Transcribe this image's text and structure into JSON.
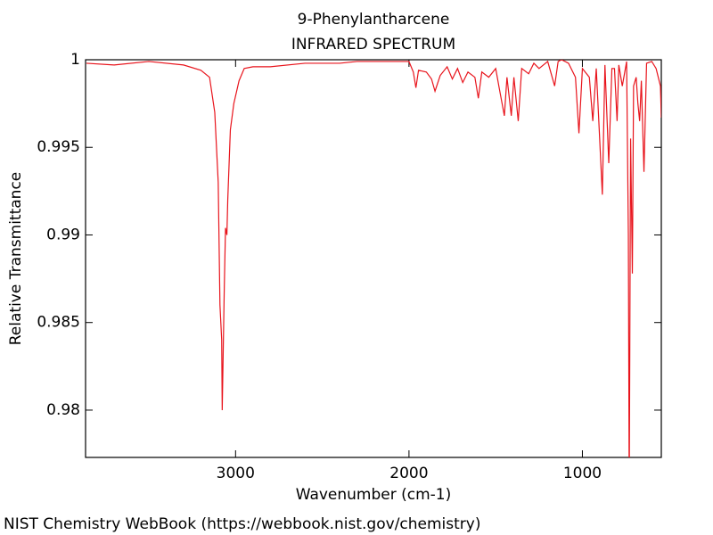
{
  "chart_data": {
    "type": "line",
    "title": "9-Phenylantharcene",
    "subtitle": "INFRARED SPECTRUM",
    "x_label": "Wavenumber (cm-1)",
    "y_label": "Relative Transmittance",
    "source": "NIST Chemistry WebBook (https://webbook.nist.gov/chemistry)",
    "xlim": [
      3865,
      545
    ],
    "ylim": [
      0.9773,
      1.0
    ],
    "xticks": [
      3000,
      2000,
      1000
    ],
    "yticks": [
      0.98,
      0.985,
      0.99,
      0.995,
      1
    ],
    "x": [
      3860,
      3700,
      3500,
      3300,
      3200,
      3150,
      3120,
      3100,
      3090,
      3080,
      3077,
      3065,
      3058,
      3050,
      3045,
      3030,
      3010,
      2980,
      2950,
      2900,
      2800,
      2600,
      2400,
      2300,
      2100,
      2000,
      1975,
      1960,
      1945,
      1900,
      1870,
      1850,
      1820,
      1780,
      1750,
      1720,
      1690,
      1660,
      1620,
      1600,
      1580,
      1540,
      1500,
      1480,
      1450,
      1435,
      1410,
      1395,
      1370,
      1350,
      1310,
      1280,
      1250,
      1200,
      1160,
      1140,
      1120,
      1080,
      1040,
      1020,
      1000,
      960,
      940,
      920,
      885,
      870,
      848,
      830,
      815,
      800,
      790,
      770,
      745,
      735,
      730,
      722,
      712,
      705,
      690,
      680,
      670,
      660,
      645,
      630,
      600,
      575,
      550,
      545
    ],
    "series": [
      {
        "name": "9-Phenylantharcene",
        "color": "#e8141c",
        "values": [
          0.9998,
          0.9997,
          0.9999,
          0.9997,
          0.9994,
          0.999,
          0.997,
          0.993,
          0.986,
          0.984,
          0.98,
          0.987,
          0.9904,
          0.99,
          0.992,
          0.996,
          0.9975,
          0.9988,
          0.9995,
          0.9996,
          0.9996,
          0.9998,
          0.9998,
          0.9999,
          0.9999,
          0.9999,
          0.9993,
          0.9984,
          0.9994,
          0.9993,
          0.9989,
          0.9982,
          0.9991,
          0.9996,
          0.9989,
          0.9995,
          0.9987,
          0.9993,
          0.999,
          0.9978,
          0.9993,
          0.999,
          0.9995,
          0.9984,
          0.9968,
          0.999,
          0.9968,
          0.999,
          0.9965,
          0.9995,
          0.9992,
          0.9998,
          0.9995,
          0.9999,
          0.9985,
          0.9999,
          1.0,
          0.9998,
          0.999,
          0.9958,
          0.9995,
          0.999,
          0.9965,
          0.9995,
          0.9923,
          0.9997,
          0.9941,
          0.9995,
          0.9995,
          0.9965,
          0.9997,
          0.9985,
          0.9999,
          0.99,
          0.975,
          0.9955,
          0.9878,
          0.9985,
          0.999,
          0.9975,
          0.9965,
          0.9988,
          0.9936,
          0.9998,
          0.9999,
          0.9995,
          0.9985,
          0.9967
        ]
      }
    ]
  }
}
